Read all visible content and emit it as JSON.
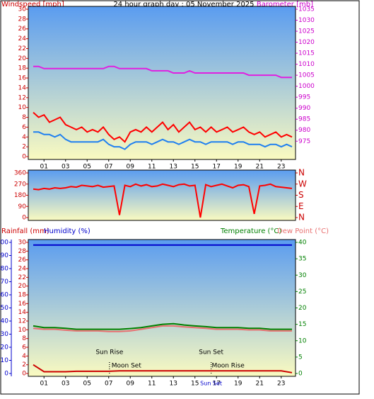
{
  "chart_data": [
    {
      "type": "line",
      "title": "24 hour graph day : 05 November 2025",
      "ylabel": "Windspeed [mph]",
      "y2label": "Barometer [mb]",
      "y_color": "#cc0000",
      "y2_color": "#cc00cc",
      "xlim": [
        0,
        24
      ],
      "xticks": [
        {
          "value": 1,
          "label": "01"
        },
        {
          "value": 3,
          "label": "03"
        },
        {
          "value": 5,
          "label": "05"
        },
        {
          "value": 7,
          "label": "07"
        },
        {
          "value": 9,
          "label": "09"
        },
        11,
        13,
        15,
        17,
        19,
        21,
        23
      ],
      "ylim": [
        0,
        30
      ],
      "yticks": [
        0,
        2,
        4,
        6,
        8,
        10,
        12,
        14,
        16,
        18,
        20,
        22,
        24,
        26,
        28,
        30
      ],
      "y2lim": [
        968,
        1035
      ],
      "y2ticks": [
        975,
        980,
        985,
        990,
        995,
        1000,
        1005,
        1010,
        1015,
        1020,
        1025,
        1030,
        1035
      ],
      "x": [
        0,
        0.5,
        1,
        1.5,
        2,
        2.5,
        3,
        3.5,
        4,
        4.5,
        5,
        5.5,
        6,
        6.5,
        7,
        7.5,
        8,
        8.5,
        9,
        9.5,
        10,
        10.5,
        11,
        11.5,
        12,
        12.5,
        13,
        13.5,
        14,
        14.5,
        15,
        15.5,
        16,
        16.5,
        17,
        17.5,
        18,
        18.5,
        19,
        19.5,
        20,
        20.5,
        21,
        21.5,
        22,
        22.5,
        23,
        23.5,
        24
      ],
      "series": [
        {
          "color": "#ff0000",
          "values": [
            9,
            8,
            8.5,
            7,
            7.5,
            8,
            6.5,
            6,
            5.5,
            6,
            5,
            5.5,
            5,
            6,
            4.5,
            3.5,
            4,
            3,
            5,
            5.5,
            5,
            6,
            5,
            6,
            7,
            5.5,
            6.5,
            5,
            6,
            7,
            5.5,
            6,
            5,
            6,
            5,
            5.5,
            6,
            5,
            5.5,
            6,
            5,
            4.5,
            5,
            4,
            4.5,
            5,
            4,
            4.5,
            4
          ]
        },
        {
          "color": "#2080f0",
          "values": [
            5,
            5,
            4.5,
            4.5,
            4,
            4.5,
            3.5,
            3,
            3,
            3,
            3,
            3,
            3,
            3.5,
            2.5,
            2,
            2,
            1.5,
            2.5,
            3,
            3,
            3,
            2.5,
            3,
            3.5,
            3,
            3,
            2.5,
            3,
            3.5,
            3,
            3,
            2.5,
            3,
            3,
            3,
            3,
            2.5,
            3,
            3,
            2.5,
            2.5,
            2.5,
            2,
            2.5,
            2.5,
            2,
            2.5,
            2
          ]
        },
        {
          "color": "#e020e0",
          "axis": "y2",
          "values": [
            1009,
            1009,
            1008,
            1008,
            1008,
            1008,
            1008,
            1008,
            1008,
            1008,
            1008,
            1008,
            1008,
            1008,
            1009,
            1009,
            1008,
            1008,
            1008,
            1008,
            1008,
            1008,
            1007,
            1007,
            1007,
            1007,
            1006,
            1006,
            1006,
            1007,
            1006,
            1006,
            1006,
            1006,
            1006,
            1006,
            1006,
            1006,
            1006,
            1006,
            1005,
            1005,
            1005,
            1005,
            1005,
            1005,
            1004,
            1004,
            1004
          ]
        }
      ]
    },
    {
      "type": "line",
      "y_color": "#cc0000",
      "y2_color": "#cc0000",
      "xlim": [
        0,
        24
      ],
      "ylim": [
        0,
        360
      ],
      "yticks": [
        0,
        90,
        180,
        270,
        360
      ],
      "y2lim": [
        0,
        360
      ],
      "y2ticks": [
        {
          "value": 360,
          "label": "N"
        },
        {
          "value": 270,
          "label": "W"
        },
        {
          "value": 180,
          "label": "S"
        },
        {
          "value": 90,
          "label": "E"
        },
        {
          "value": 0,
          "label": "N"
        }
      ],
      "x": [
        0,
        0.5,
        1,
        1.5,
        2,
        2.5,
        3,
        3.5,
        4,
        4.5,
        5,
        5.5,
        6,
        6.5,
        7,
        7.5,
        8,
        8.5,
        9,
        9.5,
        10,
        10.5,
        11,
        11.5,
        12,
        12.5,
        13,
        13.5,
        14,
        14.5,
        15,
        15.5,
        16,
        16.5,
        17,
        17.5,
        18,
        18.5,
        19,
        19.5,
        20,
        20.5,
        21,
        21.5,
        22,
        22.5,
        23,
        23.5,
        24
      ],
      "series": [
        {
          "color": "#ff0000",
          "values": [
            230,
            225,
            235,
            230,
            240,
            235,
            240,
            250,
            245,
            260,
            255,
            250,
            260,
            245,
            250,
            255,
            20,
            260,
            250,
            270,
            255,
            265,
            250,
            255,
            270,
            260,
            250,
            265,
            270,
            255,
            260,
            0,
            265,
            250,
            260,
            270,
            255,
            240,
            260,
            265,
            250,
            30,
            255,
            260,
            270,
            250,
            245,
            240,
            235
          ]
        }
      ]
    },
    {
      "type": "line",
      "y_color": "#cc0000",
      "y2_color": "#008000",
      "y3_color": "#0000cc",
      "xlim": [
        0,
        24
      ],
      "xticks": [
        {
          "value": 1,
          "label": "01"
        },
        {
          "value": 3,
          "label": "03"
        },
        {
          "value": 5,
          "label": "05"
        },
        {
          "value": 7,
          "label": "07"
        },
        {
          "value": 9,
          "label": "09"
        },
        11,
        13,
        15,
        17,
        19,
        21,
        23
      ],
      "ylim": [
        0,
        30
      ],
      "yticks": [
        0,
        2,
        4,
        6,
        8,
        10,
        12,
        14,
        16,
        18,
        20,
        22,
        24,
        26,
        28,
        30
      ],
      "y2lim": [
        0,
        40
      ],
      "y2ticks": [
        0,
        5,
        10,
        15,
        20,
        25,
        30,
        35,
        40
      ],
      "y3lim": [
        0,
        100
      ],
      "y3ticks": [
        0,
        10,
        20,
        30,
        40,
        50,
        60,
        70,
        80,
        90,
        100
      ],
      "x": [
        0,
        1,
        2,
        3,
        4,
        5,
        6,
        7,
        8,
        9,
        10,
        11,
        12,
        13,
        14,
        15,
        16,
        17,
        18,
        19,
        20,
        21,
        22,
        23,
        24
      ],
      "series": [
        {
          "name": "Rainfall (mm)",
          "color": "#cc0000",
          "values": [
            2,
            0.4,
            0.4,
            0.4,
            0.5,
            0.5,
            0.5,
            0.5,
            0.6,
            0.6,
            0.6,
            0.6,
            0.6,
            0.6,
            0.6,
            0.6,
            0.6,
            0.6,
            0.6,
            0.6,
            0.6,
            0.6,
            0.6,
            0.6,
            0.2
          ]
        },
        {
          "name": "Humidity (%)",
          "color": "#0000cc",
          "axis": "y3",
          "values": [
            98,
            98,
            98,
            98,
            98,
            98,
            98,
            98,
            98,
            98,
            98,
            98,
            98,
            98,
            98,
            98,
            98,
            98,
            98,
            98,
            98,
            98,
            98,
            98,
            98
          ]
        },
        {
          "name": "Temperature (°C)",
          "color": "#008000",
          "axis": "y2",
          "values": [
            14.5,
            14,
            14,
            13.8,
            13.5,
            13.5,
            13.5,
            13.5,
            13.5,
            13.7,
            14,
            14.5,
            15,
            15.2,
            14.8,
            14.5,
            14.3,
            14,
            14,
            14,
            13.8,
            13.8,
            13.5,
            13.5,
            13.5
          ]
        },
        {
          "name": "Dew Point (°C)",
          "color": "#e87070",
          "axis": "y2",
          "values": [
            13.8,
            13.5,
            13.5,
            13.2,
            13,
            13,
            13,
            12.8,
            12.8,
            13,
            13.5,
            14,
            14.5,
            14.5,
            14.2,
            14,
            13.8,
            13.5,
            13.5,
            13.5,
            13.3,
            13.3,
            13,
            13,
            13
          ]
        }
      ],
      "events": [
        {
          "label": "Sun Rise",
          "x": 7.07
        },
        {
          "label": "Moon Set",
          "x": 7.07
        },
        {
          "label": "Sun Set",
          "x": 16.5
        },
        {
          "label": "Moon Rise",
          "x": 16.5
        }
      ],
      "axis_marker": {
        "label": "Sun Set",
        "x": 16.5
      }
    }
  ]
}
